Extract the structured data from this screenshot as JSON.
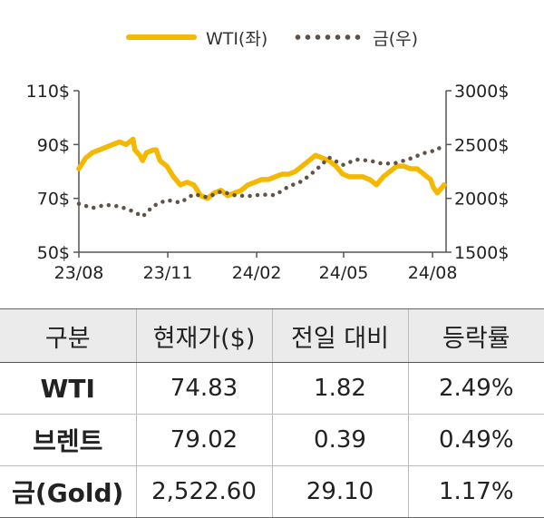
{
  "legend": {
    "wti_label": "WTI(좌)",
    "gold_label": "금(우)"
  },
  "colors": {
    "wti": "#f5b800",
    "gold": "#5e5346",
    "axis": "#555555",
    "header_bg": "#ebebeb"
  },
  "chart_data": {
    "type": "line",
    "x_tick_labels": [
      "23/08",
      "23/11",
      "24/02",
      "24/05",
      "24/08"
    ],
    "x_range": [
      "2023-08-01",
      "2024-08-15"
    ],
    "y_left": {
      "tick_labels": [
        "110$",
        "90$",
        "70$",
        "50$"
      ],
      "ticks": [
        110,
        90,
        70,
        50
      ],
      "range": [
        50,
        110
      ]
    },
    "y_right": {
      "tick_labels": [
        "3000$",
        "2500$",
        "2000$",
        "1500$"
      ],
      "ticks": [
        3000,
        2500,
        2000,
        1500
      ],
      "range": [
        1500,
        3000
      ]
    },
    "grid": false,
    "legend_position": "top-center",
    "series": [
      {
        "name": "WTI(좌)",
        "axis": "left",
        "style": "solid",
        "x": [
          "2023-08-01",
          "2023-08-08",
          "2023-08-15",
          "2023-08-22",
          "2023-08-29",
          "2023-09-05",
          "2023-09-12",
          "2023-09-19",
          "2023-09-26",
          "2023-09-28",
          "2023-10-03",
          "2023-10-06",
          "2023-10-10",
          "2023-10-17",
          "2023-10-20",
          "2023-10-24",
          "2023-10-31",
          "2023-11-07",
          "2023-11-14",
          "2023-11-21",
          "2023-11-28",
          "2023-12-05",
          "2023-12-12",
          "2023-12-19",
          "2023-12-26",
          "2024-01-02",
          "2024-01-09",
          "2024-01-16",
          "2024-01-23",
          "2024-01-30",
          "2024-02-06",
          "2024-02-13",
          "2024-02-20",
          "2024-02-27",
          "2024-03-05",
          "2024-03-12",
          "2024-03-19",
          "2024-03-26",
          "2024-04-02",
          "2024-04-09",
          "2024-04-16",
          "2024-04-23",
          "2024-04-30",
          "2024-05-07",
          "2024-05-14",
          "2024-05-21",
          "2024-05-28",
          "2024-06-04",
          "2024-06-11",
          "2024-06-18",
          "2024-06-25",
          "2024-07-02",
          "2024-07-09",
          "2024-07-16",
          "2024-07-23",
          "2024-07-30",
          "2024-08-02",
          "2024-08-06",
          "2024-08-13"
        ],
        "values": [
          81,
          85,
          87,
          88,
          89,
          90,
          91,
          90,
          92,
          88,
          86,
          84,
          87,
          88,
          88,
          84,
          82,
          78,
          75,
          76,
          75,
          71,
          70,
          72,
          73,
          71,
          72,
          73,
          75,
          76,
          77,
          77,
          78,
          79,
          79,
          80,
          82,
          84,
          86,
          85,
          84,
          82,
          79,
          78,
          78,
          78,
          77,
          75,
          78,
          80,
          82,
          82,
          81,
          81,
          79,
          77,
          74,
          72,
          75
        ]
      },
      {
        "name": "금(우)",
        "axis": "right",
        "style": "dotted",
        "x": [
          "2023-08-01",
          "2023-08-15",
          "2023-08-29",
          "2023-09-12",
          "2023-09-26",
          "2023-10-06",
          "2023-10-17",
          "2023-10-31",
          "2023-11-14",
          "2023-11-28",
          "2023-12-12",
          "2023-12-26",
          "2024-01-09",
          "2024-01-23",
          "2024-02-06",
          "2024-02-20",
          "2024-03-05",
          "2024-03-19",
          "2024-04-02",
          "2024-04-16",
          "2024-04-30",
          "2024-05-14",
          "2024-05-28",
          "2024-06-11",
          "2024-06-25",
          "2024-07-09",
          "2024-07-23",
          "2024-08-06",
          "2024-08-13"
        ],
        "values": [
          1950,
          1910,
          1940,
          1925,
          1880,
          1830,
          1930,
          1985,
          1960,
          2040,
          2010,
          2065,
          2030,
          2020,
          2035,
          2030,
          2110,
          2160,
          2260,
          2380,
          2310,
          2360,
          2350,
          2320,
          2330,
          2370,
          2420,
          2450,
          2510
        ]
      }
    ]
  },
  "table": {
    "headers": [
      "구분",
      "현재가($)",
      "전일 대비",
      "등락률"
    ],
    "rows": [
      [
        "WTI",
        "74.83",
        "1.82",
        "2.49%"
      ],
      [
        "브렌트",
        "79.02",
        "0.39",
        "0.49%"
      ],
      [
        "금(Gold)",
        "2,522.60",
        "29.10",
        "1.17%"
      ]
    ]
  }
}
